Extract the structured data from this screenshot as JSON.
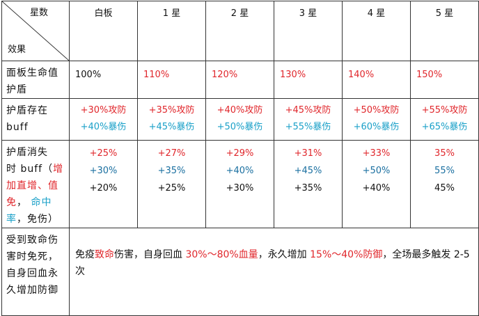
{
  "header": {
    "top_label": "星数",
    "bottom_label": "效果",
    "columns": [
      "白板",
      "1 星",
      "2 星",
      "3 星",
      "4 星",
      "5 星"
    ]
  },
  "row1": {
    "label": "面板生命值护盾",
    "values": [
      "100%",
      "110%",
      "120%",
      "130%",
      "140%",
      "150%"
    ]
  },
  "row2": {
    "label_line1": "护盾存在",
    "label_line2": "buff",
    "attack": [
      "+30%攻防",
      "+35%攻防",
      "+40%攻防",
      "+45%攻防",
      "+50%攻防",
      "+55%攻防"
    ],
    "crit": [
      "+40%暴伤",
      "+45%暴伤",
      "+50%暴伤",
      "+55%暴伤",
      "+60%暴伤",
      "+65%暴伤"
    ]
  },
  "row3": {
    "label_line1": "护盾消失",
    "label_line2a": "时 buff（",
    "label_line2b": "增",
    "label_line3": "加直增、值",
    "label_line4a": "免",
    "label_line4b": "，",
    "label_line4c": "命中",
    "label_line5a": "率",
    "label_line5b": "，免伤）",
    "line1": [
      "+25%",
      "+27%",
      "+29%",
      "+31%",
      "+33%",
      "35%"
    ],
    "line2": [
      "+30%",
      "+35%",
      "+40%",
      "+45%",
      "+50%",
      "55%"
    ],
    "line3": [
      "+20%",
      "+25%",
      "+30%",
      "+35%",
      "+40%",
      "45%"
    ]
  },
  "row4": {
    "label": "受到致命伤害时免死，自身回血永久增加防御",
    "text": {
      "p1": "免疫",
      "p2": "致命",
      "p3": "伤害，自身回血 ",
      "p4": "30%～80%血量",
      "p5": "，永久增加 ",
      "p6": "15%～40%防御",
      "p7": "，全场最多触发 2-5 次"
    }
  },
  "colors": {
    "red": "#e0262b",
    "cyan": "#1aa0c8",
    "blue": "#1a6fa0",
    "border": "#333333"
  }
}
